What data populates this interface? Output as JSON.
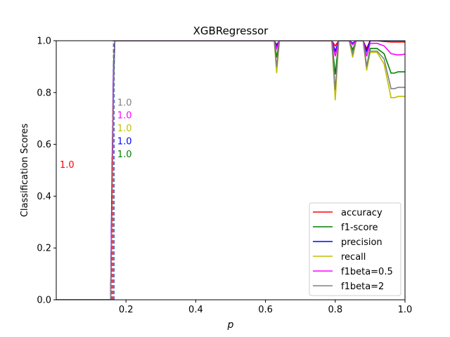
{
  "chart_data": {
    "type": "line",
    "title": "XGBRegressor",
    "xlabel": "p",
    "ylabel": "Classification Scores",
    "xlim": [
      0.0,
      1.0
    ],
    "ylim": [
      0.0,
      1.0
    ],
    "xticks": [
      "0.2",
      "0.4",
      "0.6",
      "0.8",
      "1.0"
    ],
    "xtick_values": [
      0.2,
      0.4,
      0.6,
      0.8,
      1.0
    ],
    "yticks": [
      "0.0",
      "0.2",
      "0.4",
      "0.6",
      "0.8",
      "1.0"
    ],
    "ytick_values": [
      0.0,
      0.2,
      0.4,
      0.6,
      0.8,
      1.0
    ],
    "grid": false,
    "legend_position": "lower-right",
    "series": [
      {
        "name": "accuracy",
        "color": "#ff0000",
        "x": [
          0.0,
          0.152,
          0.156,
          0.16,
          0.164,
          0.168,
          0.2,
          0.6,
          0.625,
          0.632,
          0.64,
          0.79,
          0.8,
          0.81,
          0.84,
          0.85,
          0.86,
          0.88,
          0.89,
          0.9,
          0.92,
          0.94,
          0.96,
          0.98,
          1.0
        ],
        "y": [
          0.0,
          0.0,
          0.0,
          0.45,
          0.85,
          1.0,
          1.0,
          1.0,
          1.0,
          0.985,
          1.0,
          1.0,
          0.98,
          1.0,
          1.0,
          0.99,
          1.0,
          1.0,
          0.97,
          1.0,
          1.0,
          0.997,
          0.995,
          0.995,
          0.995
        ]
      },
      {
        "name": "f1-score",
        "color": "#008000",
        "x": [
          0.0,
          0.152,
          0.156,
          0.16,
          0.164,
          0.168,
          0.2,
          0.6,
          0.625,
          0.632,
          0.64,
          0.79,
          0.8,
          0.81,
          0.84,
          0.85,
          0.86,
          0.88,
          0.89,
          0.9,
          0.92,
          0.94,
          0.96,
          0.97,
          0.98,
          1.0
        ],
        "y": [
          0.0,
          0.0,
          0.0,
          0.4,
          0.85,
          1.0,
          1.0,
          1.0,
          1.0,
          0.935,
          1.0,
          1.0,
          0.87,
          1.0,
          1.0,
          0.965,
          1.0,
          1.0,
          0.9,
          0.97,
          0.97,
          0.95,
          0.875,
          0.875,
          0.88,
          0.88
        ]
      },
      {
        "name": "precision",
        "color": "#0000ff",
        "x": [
          0.0,
          0.152,
          0.156,
          0.16,
          0.164,
          0.168,
          0.2,
          0.6,
          0.625,
          0.632,
          0.64,
          0.79,
          0.8,
          0.81,
          0.84,
          0.85,
          0.86,
          0.88,
          0.89,
          0.9,
          0.92,
          0.94,
          0.96,
          0.98,
          1.0
        ],
        "y": [
          0.0,
          0.0,
          0.0,
          0.5,
          0.9,
          1.0,
          1.0,
          1.0,
          1.0,
          0.98,
          1.0,
          1.0,
          0.96,
          1.0,
          1.0,
          0.99,
          1.0,
          1.0,
          0.96,
          1.0,
          1.0,
          1.0,
          1.0,
          1.0,
          1.0
        ]
      },
      {
        "name": "recall",
        "color": "#bfbf00",
        "x": [
          0.0,
          0.152,
          0.156,
          0.16,
          0.164,
          0.168,
          0.2,
          0.6,
          0.625,
          0.632,
          0.64,
          0.79,
          0.8,
          0.81,
          0.84,
          0.85,
          0.86,
          0.88,
          0.89,
          0.9,
          0.92,
          0.94,
          0.96,
          0.97,
          0.98,
          1.0
        ],
        "y": [
          0.0,
          0.0,
          0.0,
          0.35,
          0.8,
          1.0,
          1.0,
          1.0,
          1.0,
          0.875,
          1.0,
          1.0,
          0.77,
          1.0,
          1.0,
          0.935,
          1.0,
          1.0,
          0.885,
          0.955,
          0.955,
          0.91,
          0.78,
          0.78,
          0.785,
          0.785
        ]
      },
      {
        "name": "f1beta=0.5",
        "color": "#ff00ff",
        "x": [
          0.0,
          0.152,
          0.156,
          0.16,
          0.164,
          0.168,
          0.2,
          0.6,
          0.625,
          0.632,
          0.64,
          0.79,
          0.8,
          0.81,
          0.84,
          0.85,
          0.86,
          0.88,
          0.89,
          0.9,
          0.92,
          0.94,
          0.96,
          0.98,
          1.0
        ],
        "y": [
          0.0,
          0.0,
          0.0,
          0.42,
          0.87,
          1.0,
          1.0,
          1.0,
          1.0,
          0.97,
          1.0,
          1.0,
          0.94,
          1.0,
          1.0,
          0.985,
          1.0,
          1.0,
          0.94,
          0.99,
          0.99,
          0.98,
          0.95,
          0.945,
          0.948
        ]
      },
      {
        "name": "f1beta=2",
        "color": "#808080",
        "x": [
          0.0,
          0.152,
          0.156,
          0.16,
          0.164,
          0.168,
          0.2,
          0.6,
          0.625,
          0.632,
          0.64,
          0.79,
          0.8,
          0.81,
          0.84,
          0.85,
          0.86,
          0.88,
          0.89,
          0.9,
          0.92,
          0.94,
          0.96,
          0.97,
          0.98,
          1.0
        ],
        "y": [
          0.0,
          0.0,
          0.0,
          0.36,
          0.82,
          1.0,
          1.0,
          1.0,
          1.0,
          0.9,
          1.0,
          1.0,
          0.81,
          1.0,
          1.0,
          0.95,
          1.0,
          1.0,
          0.9,
          0.96,
          0.96,
          0.93,
          0.815,
          0.815,
          0.82,
          0.82
        ]
      }
    ],
    "threshold_lines": [
      {
        "x": 0.16,
        "color": "#ff0000",
        "ymax": 0.55
      },
      {
        "x": 0.165,
        "color": "#008000",
        "ymax": 1.0
      },
      {
        "x": 0.165,
        "color": "#0000ff",
        "ymax": 1.0
      },
      {
        "x": 0.162,
        "color": "#bfbf00",
        "ymax": 0.75
      },
      {
        "x": 0.163,
        "color": "#ff00ff",
        "ymax": 0.75
      },
      {
        "x": 0.164,
        "color": "#808080",
        "ymax": 1.0
      }
    ],
    "annotations": [
      {
        "text": "1.0",
        "color": "#ff0000",
        "x": 0.01,
        "y": 0.51
      },
      {
        "text": "1.0",
        "color": "#008000",
        "x": 0.175,
        "y": 0.55
      },
      {
        "text": "1.0",
        "color": "#0000ff",
        "x": 0.175,
        "y": 0.6
      },
      {
        "text": "1.0",
        "color": "#bfbf00",
        "x": 0.175,
        "y": 0.65
      },
      {
        "text": "1.0",
        "color": "#ff00ff",
        "x": 0.175,
        "y": 0.7
      },
      {
        "text": "1.0",
        "color": "#808080",
        "x": 0.175,
        "y": 0.75
      }
    ]
  }
}
